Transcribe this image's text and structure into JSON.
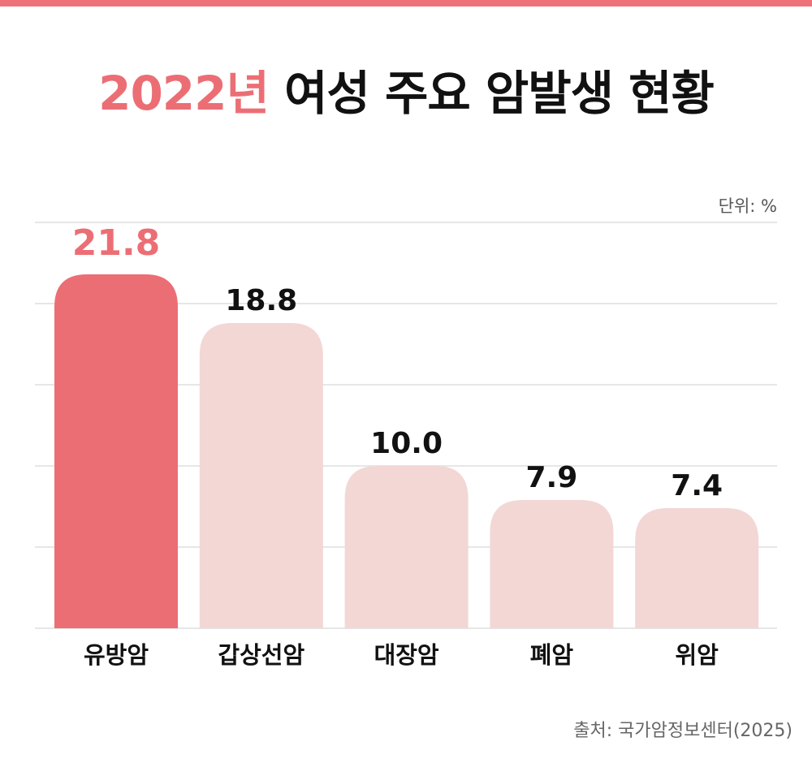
{
  "title": {
    "highlight": "2022년",
    "rest": " 여성 주요 암발생 현황"
  },
  "unit_label": "단위: %",
  "source": "출처: 국가암정보센터(2025)",
  "colors": {
    "accent": "#ec6e75",
    "bar": "#f2d7d5",
    "grid": "#e6e6e6",
    "label": "#111111"
  },
  "chart_data": {
    "type": "bar",
    "title": "2022년 여성 주요 암발생 현황",
    "categories": [
      "유방암",
      "갑상선암",
      "대장암",
      "폐암",
      "위암"
    ],
    "values": [
      21.8,
      18.8,
      10.0,
      7.9,
      7.4
    ],
    "value_labels": [
      "21.8",
      "18.8",
      "10.0",
      "7.9",
      "7.4"
    ],
    "highlight_index": 0,
    "ylim": [
      0,
      25
    ],
    "grid_step": 5,
    "grid": true,
    "xlabel": "",
    "ylabel": "단위: %"
  }
}
